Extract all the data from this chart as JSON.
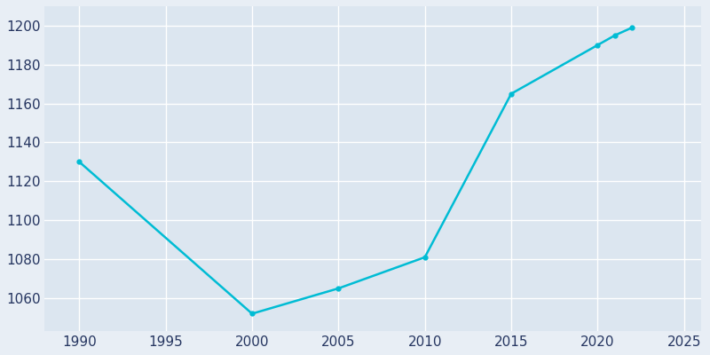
{
  "years": [
    1990,
    2000,
    2005,
    2010,
    2015,
    2020,
    2021,
    2022
  ],
  "population": [
    1130,
    1052,
    1065,
    1081,
    1165,
    1190,
    1195,
    1199
  ],
  "line_color": "#00bcd4",
  "fig_bg_color": "#e8eef5",
  "plot_bg_color": "#dce6f0",
  "grid_color": "#ffffff",
  "tick_color": "#253560",
  "xlim": [
    1988,
    2026
  ],
  "ylim": [
    1043,
    1210
  ],
  "xticks": [
    1990,
    1995,
    2000,
    2005,
    2010,
    2015,
    2020,
    2025
  ],
  "yticks": [
    1060,
    1080,
    1100,
    1120,
    1140,
    1160,
    1180,
    1200
  ],
  "linewidth": 1.8,
  "marker": "o",
  "markersize": 3.5
}
